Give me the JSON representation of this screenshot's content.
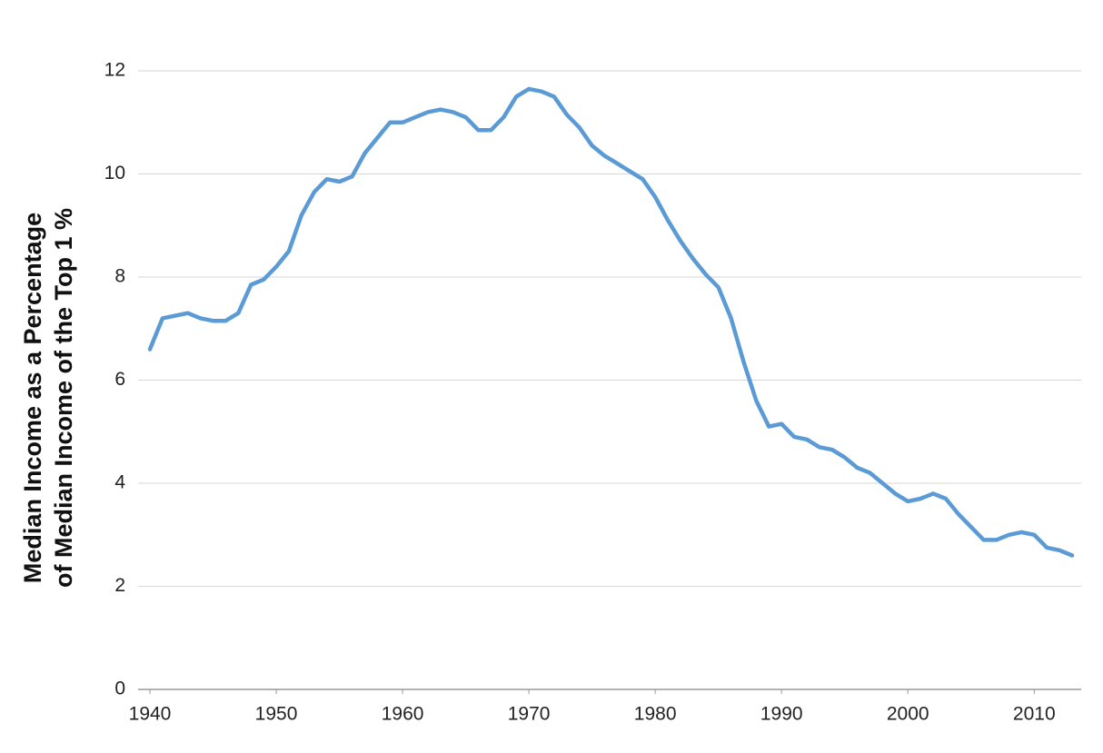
{
  "chart_data": {
    "type": "line",
    "y_label_lines": [
      "Median Income as a Percentage",
      "of Median Income of the Top 1 %"
    ],
    "x": [
      1940,
      1941,
      1942,
      1943,
      1944,
      1945,
      1946,
      1947,
      1948,
      1949,
      1950,
      1951,
      1952,
      1953,
      1954,
      1955,
      1956,
      1957,
      1958,
      1959,
      1960,
      1961,
      1962,
      1963,
      1964,
      1965,
      1966,
      1967,
      1968,
      1969,
      1970,
      1971,
      1972,
      1973,
      1974,
      1975,
      1976,
      1977,
      1978,
      1979,
      1980,
      1981,
      1982,
      1983,
      1984,
      1985,
      1986,
      1987,
      1988,
      1989,
      1990,
      1991,
      1992,
      1993,
      1994,
      1995,
      1996,
      1997,
      1998,
      1999,
      2000,
      2001,
      2002,
      2003,
      2004,
      2005,
      2006,
      2007,
      2008,
      2009,
      2010,
      2011,
      2012,
      2013
    ],
    "series": [
      {
        "color": "#5b9bd5",
        "values": [
          6.6,
          7.2,
          7.25,
          7.3,
          7.2,
          7.15,
          7.15,
          7.3,
          7.85,
          7.95,
          8.2,
          8.5,
          9.2,
          9.65,
          9.9,
          9.85,
          9.95,
          10.4,
          10.7,
          11.0,
          11.0,
          11.1,
          11.2,
          11.25,
          11.2,
          11.1,
          10.85,
          10.85,
          11.1,
          11.5,
          11.65,
          11.6,
          11.5,
          11.15,
          10.9,
          10.55,
          10.35,
          10.2,
          10.05,
          9.9,
          9.55,
          9.1,
          8.7,
          8.35,
          8.05,
          7.8,
          7.2,
          6.35,
          5.6,
          5.1,
          5.15,
          4.9,
          4.85,
          4.7,
          4.65,
          4.5,
          4.3,
          4.2,
          4.0,
          3.8,
          3.65,
          3.7,
          3.8,
          3.7,
          3.4,
          3.15,
          2.9,
          2.9,
          3.0,
          3.05,
          3.0,
          2.75,
          2.7,
          2.6
        ]
      }
    ],
    "xlim": [
      1940,
      2013
    ],
    "xticks": [
      1940,
      1950,
      1960,
      1970,
      1980,
      1990,
      2000,
      2010
    ],
    "ylim": [
      0,
      12
    ],
    "yticks": [
      0,
      2,
      4,
      6,
      8,
      10,
      12
    ],
    "grid": true
  }
}
